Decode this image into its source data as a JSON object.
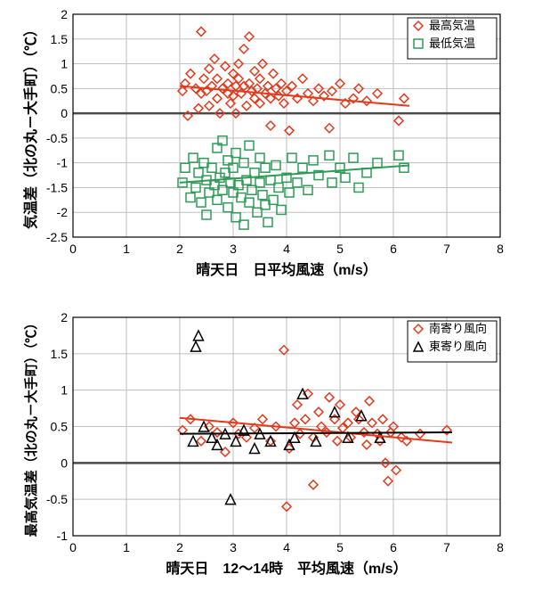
{
  "chart1": {
    "type": "scatter",
    "xlabel": "晴天日　日平均風速（m/s）",
    "ylabel": "気温差（北の丸－大手町）（℃）",
    "label_fontsize": 16,
    "tick_fontsize": 14,
    "xlim": [
      0,
      8
    ],
    "ylim": [
      -2.5,
      2
    ],
    "xtick_step": 1,
    "ytick_step": 0.5,
    "grid_color": "#bfbfbf",
    "border_color": "#000000",
    "zero_line_color": "#4a4a4a",
    "background_color": "#ffffff",
    "legend": {
      "position": "top-right",
      "border_color": "#000000",
      "items": [
        {
          "marker": "diamond",
          "color": "#e33a1c",
          "label": "最高気温"
        },
        {
          "marker": "square",
          "color": "#2e9b57",
          "label": "最低気温"
        }
      ]
    },
    "series": [
      {
        "name": "max-temp",
        "label": "最高気温",
        "marker": "diamond",
        "marker_size": 10,
        "color": "#e33a1c",
        "fill": "none",
        "stroke_width": 1.5,
        "trend": {
          "x1": 2.0,
          "y1": 0.55,
          "x2": 6.3,
          "y2": 0.15,
          "color": "#e33a1c",
          "width": 2
        },
        "points": [
          [
            2.05,
            0.45
          ],
          [
            2.1,
            0.6
          ],
          [
            2.15,
            -0.05
          ],
          [
            2.2,
            0.8
          ],
          [
            2.3,
            0.5
          ],
          [
            2.35,
            0.1
          ],
          [
            2.4,
            0.4
          ],
          [
            2.4,
            1.65
          ],
          [
            2.45,
            0.7
          ],
          [
            2.5,
            0.45
          ],
          [
            2.55,
            0.9
          ],
          [
            2.55,
            0.15
          ],
          [
            2.6,
            0.55
          ],
          [
            2.65,
            1.1
          ],
          [
            2.7,
            0.3
          ],
          [
            2.7,
            0.7
          ],
          [
            2.75,
            0.0
          ],
          [
            2.8,
            0.5
          ],
          [
            2.85,
            0.95
          ],
          [
            2.9,
            0.4
          ],
          [
            2.9,
            0.6
          ],
          [
            2.95,
            0.2
          ],
          [
            3.0,
            0.8
          ],
          [
            3.0,
            0.35
          ],
          [
            3.05,
            0.55
          ],
          [
            3.05,
            0.0
          ],
          [
            3.1,
            0.7
          ],
          [
            3.1,
            1.0
          ],
          [
            3.15,
            0.4
          ],
          [
            3.2,
            0.55
          ],
          [
            3.2,
            1.3
          ],
          [
            3.25,
            0.15
          ],
          [
            3.3,
            0.6
          ],
          [
            3.3,
            1.55
          ],
          [
            3.35,
            0.45
          ],
          [
            3.4,
            0.3
          ],
          [
            3.4,
            0.85
          ],
          [
            3.45,
            0.5
          ],
          [
            3.5,
            0.7
          ],
          [
            3.5,
            0.2
          ],
          [
            3.55,
            1.0
          ],
          [
            3.6,
            0.4
          ],
          [
            3.65,
            0.55
          ],
          [
            3.7,
            0.3
          ],
          [
            3.7,
            -0.25
          ],
          [
            3.75,
            0.8
          ],
          [
            3.8,
            0.5
          ],
          [
            3.85,
            0.35
          ],
          [
            3.9,
            0.6
          ],
          [
            3.95,
            0.2
          ],
          [
            4.0,
            0.45
          ],
          [
            4.05,
            -0.35
          ],
          [
            4.1,
            0.55
          ],
          [
            4.2,
            0.3
          ],
          [
            4.3,
            0.7
          ],
          [
            4.4,
            0.4
          ],
          [
            4.5,
            0.25
          ],
          [
            4.6,
            0.5
          ],
          [
            4.7,
            0.35
          ],
          [
            4.8,
            -0.3
          ],
          [
            4.85,
            0.45
          ],
          [
            5.0,
            0.6
          ],
          [
            5.1,
            0.2
          ],
          [
            5.25,
            0.3
          ],
          [
            5.35,
            0.5
          ],
          [
            5.5,
            0.25
          ],
          [
            5.7,
            0.4
          ],
          [
            6.1,
            -0.15
          ],
          [
            6.2,
            0.3
          ]
        ]
      },
      {
        "name": "min-temp",
        "label": "最低気温",
        "marker": "square",
        "marker_size": 10,
        "color": "#2e9b57",
        "fill": "none",
        "stroke_width": 1.5,
        "trend": {
          "x1": 2.0,
          "y1": -1.4,
          "x2": 6.3,
          "y2": -1.05,
          "color": "#2e9b57",
          "width": 2
        },
        "points": [
          [
            2.05,
            -1.4
          ],
          [
            2.1,
            -1.1
          ],
          [
            2.2,
            -1.7
          ],
          [
            2.25,
            -0.9
          ],
          [
            2.3,
            -1.5
          ],
          [
            2.35,
            -1.2
          ],
          [
            2.4,
            -1.8
          ],
          [
            2.45,
            -1.0
          ],
          [
            2.5,
            -1.35
          ],
          [
            2.5,
            -2.05
          ],
          [
            2.55,
            -1.6
          ],
          [
            2.6,
            -1.1
          ],
          [
            2.65,
            -1.45
          ],
          [
            2.7,
            -0.7
          ],
          [
            2.7,
            -1.75
          ],
          [
            2.75,
            -1.3
          ],
          [
            2.8,
            -1.55
          ],
          [
            2.8,
            -0.55
          ],
          [
            2.85,
            -1.2
          ],
          [
            2.9,
            -1.9
          ],
          [
            2.9,
            -0.95
          ],
          [
            2.95,
            -1.4
          ],
          [
            3.0,
            -1.6
          ],
          [
            3.0,
            -1.1
          ],
          [
            3.05,
            -2.1
          ],
          [
            3.05,
            -0.8
          ],
          [
            3.1,
            -1.45
          ],
          [
            3.15,
            -1.7
          ],
          [
            3.2,
            -1.0
          ],
          [
            3.2,
            -2.25
          ],
          [
            3.25,
            -1.35
          ],
          [
            3.3,
            -1.8
          ],
          [
            3.3,
            -0.65
          ],
          [
            3.35,
            -1.55
          ],
          [
            3.4,
            -1.2
          ],
          [
            3.45,
            -2.0
          ],
          [
            3.5,
            -1.4
          ],
          [
            3.5,
            -0.9
          ],
          [
            3.55,
            -1.65
          ],
          [
            3.6,
            -1.85
          ],
          [
            3.6,
            -1.1
          ],
          [
            3.65,
            -2.2
          ],
          [
            3.7,
            -1.35
          ],
          [
            3.75,
            -1.75
          ],
          [
            3.8,
            -1.05
          ],
          [
            3.85,
            -1.5
          ],
          [
            3.9,
            -1.95
          ],
          [
            4.0,
            -1.3
          ],
          [
            4.05,
            -1.6
          ],
          [
            4.1,
            -0.9
          ],
          [
            4.2,
            -1.4
          ],
          [
            4.3,
            -1.1
          ],
          [
            4.4,
            -1.55
          ],
          [
            4.5,
            -0.95
          ],
          [
            4.6,
            -1.25
          ],
          [
            4.8,
            -0.85
          ],
          [
            4.85,
            -1.4
          ],
          [
            5.0,
            -1.1
          ],
          [
            5.1,
            -1.3
          ],
          [
            5.25,
            -0.9
          ],
          [
            5.35,
            -1.5
          ],
          [
            5.5,
            -1.2
          ],
          [
            5.7,
            -1.0
          ],
          [
            6.1,
            -0.85
          ],
          [
            6.2,
            -1.1
          ]
        ]
      }
    ]
  },
  "chart2": {
    "type": "scatter",
    "xlabel": "晴天日　12～14時　平均風速（m/s）",
    "ylabel": "最高気温差（北の丸－大手町）（℃）",
    "label_fontsize": 16,
    "ylabel_fontsize_small": 11,
    "tick_fontsize": 14,
    "xlim": [
      0,
      8
    ],
    "ylim": [
      -1,
      2
    ],
    "xtick_step": 1,
    "ytick_step": 0.5,
    "grid_color": "#bfbfbf",
    "border_color": "#000000",
    "zero_line_color": "#4a4a4a",
    "background_color": "#ffffff",
    "legend": {
      "position": "top-right",
      "border_color": "#000000",
      "items": [
        {
          "marker": "diamond",
          "color": "#e33a1c",
          "label": "南寄り風向"
        },
        {
          "marker": "triangle",
          "color": "#000000",
          "label": "東寄り風向"
        }
      ]
    },
    "series": [
      {
        "name": "south",
        "label": "南寄り風向",
        "marker": "diamond",
        "marker_size": 10,
        "color": "#e33a1c",
        "fill": "none",
        "stroke_width": 1.5,
        "trend": {
          "x1": 2.0,
          "y1": 0.62,
          "x2": 7.1,
          "y2": 0.28,
          "color": "#e33a1c",
          "width": 2
        },
        "points": [
          [
            2.05,
            0.45
          ],
          [
            2.2,
            0.6
          ],
          [
            2.4,
            0.3
          ],
          [
            2.55,
            0.5
          ],
          [
            2.7,
            0.42
          ],
          [
            2.85,
            0.15
          ],
          [
            3.0,
            0.55
          ],
          [
            3.1,
            0.4
          ],
          [
            3.25,
            0.35
          ],
          [
            3.4,
            0.48
          ],
          [
            3.55,
            0.6
          ],
          [
            3.7,
            0.3
          ],
          [
            3.8,
            0.5
          ],
          [
            3.95,
            1.55
          ],
          [
            4.0,
            -0.6
          ],
          [
            4.05,
            0.2
          ],
          [
            4.15,
            0.55
          ],
          [
            4.2,
            0.8
          ],
          [
            4.25,
            0.4
          ],
          [
            4.35,
            0.6
          ],
          [
            4.4,
            0.95
          ],
          [
            4.5,
            0.35
          ],
          [
            4.5,
            -0.3
          ],
          [
            4.6,
            0.7
          ],
          [
            4.65,
            0.5
          ],
          [
            4.75,
            0.42
          ],
          [
            4.8,
            0.9
          ],
          [
            4.9,
            0.6
          ],
          [
            4.95,
            0.3
          ],
          [
            5.0,
            0.8
          ],
          [
            5.05,
            0.48
          ],
          [
            5.15,
            0.55
          ],
          [
            5.2,
            0.35
          ],
          [
            5.3,
            0.7
          ],
          [
            5.35,
            0.6
          ],
          [
            5.45,
            0.42
          ],
          [
            5.5,
            0.25
          ],
          [
            5.55,
            0.85
          ],
          [
            5.6,
            0.55
          ],
          [
            5.7,
            0.4
          ],
          [
            5.75,
            0.3
          ],
          [
            5.8,
            0.6
          ],
          [
            5.85,
            0.0
          ],
          [
            5.9,
            -0.25
          ],
          [
            5.95,
            0.42
          ],
          [
            6.0,
            0.5
          ],
          [
            6.05,
            -0.1
          ],
          [
            6.15,
            0.35
          ],
          [
            6.25,
            0.3
          ],
          [
            6.5,
            0.4
          ],
          [
            7.0,
            0.45
          ]
        ]
      },
      {
        "name": "east",
        "label": "東寄り風向",
        "marker": "triangle",
        "marker_size": 11,
        "color": "#000000",
        "fill": "none",
        "stroke_width": 1.5,
        "trend": {
          "x1": 2.0,
          "y1": 0.4,
          "x2": 7.1,
          "y2": 0.42,
          "color": "#000000",
          "width": 2
        },
        "points": [
          [
            2.25,
            0.3
          ],
          [
            2.3,
            1.6
          ],
          [
            2.35,
            1.75
          ],
          [
            2.45,
            0.5
          ],
          [
            2.6,
            0.35
          ],
          [
            2.7,
            0.25
          ],
          [
            2.85,
            0.4
          ],
          [
            2.95,
            -0.5
          ],
          [
            3.05,
            0.3
          ],
          [
            3.2,
            0.45
          ],
          [
            3.4,
            0.2
          ],
          [
            3.5,
            0.4
          ],
          [
            3.7,
            0.3
          ],
          [
            4.05,
            0.25
          ],
          [
            4.15,
            0.35
          ],
          [
            4.3,
            0.95
          ],
          [
            4.55,
            0.3
          ],
          [
            4.9,
            0.7
          ],
          [
            5.15,
            0.35
          ],
          [
            5.4,
            0.65
          ],
          [
            5.75,
            0.35
          ]
        ]
      }
    ]
  }
}
